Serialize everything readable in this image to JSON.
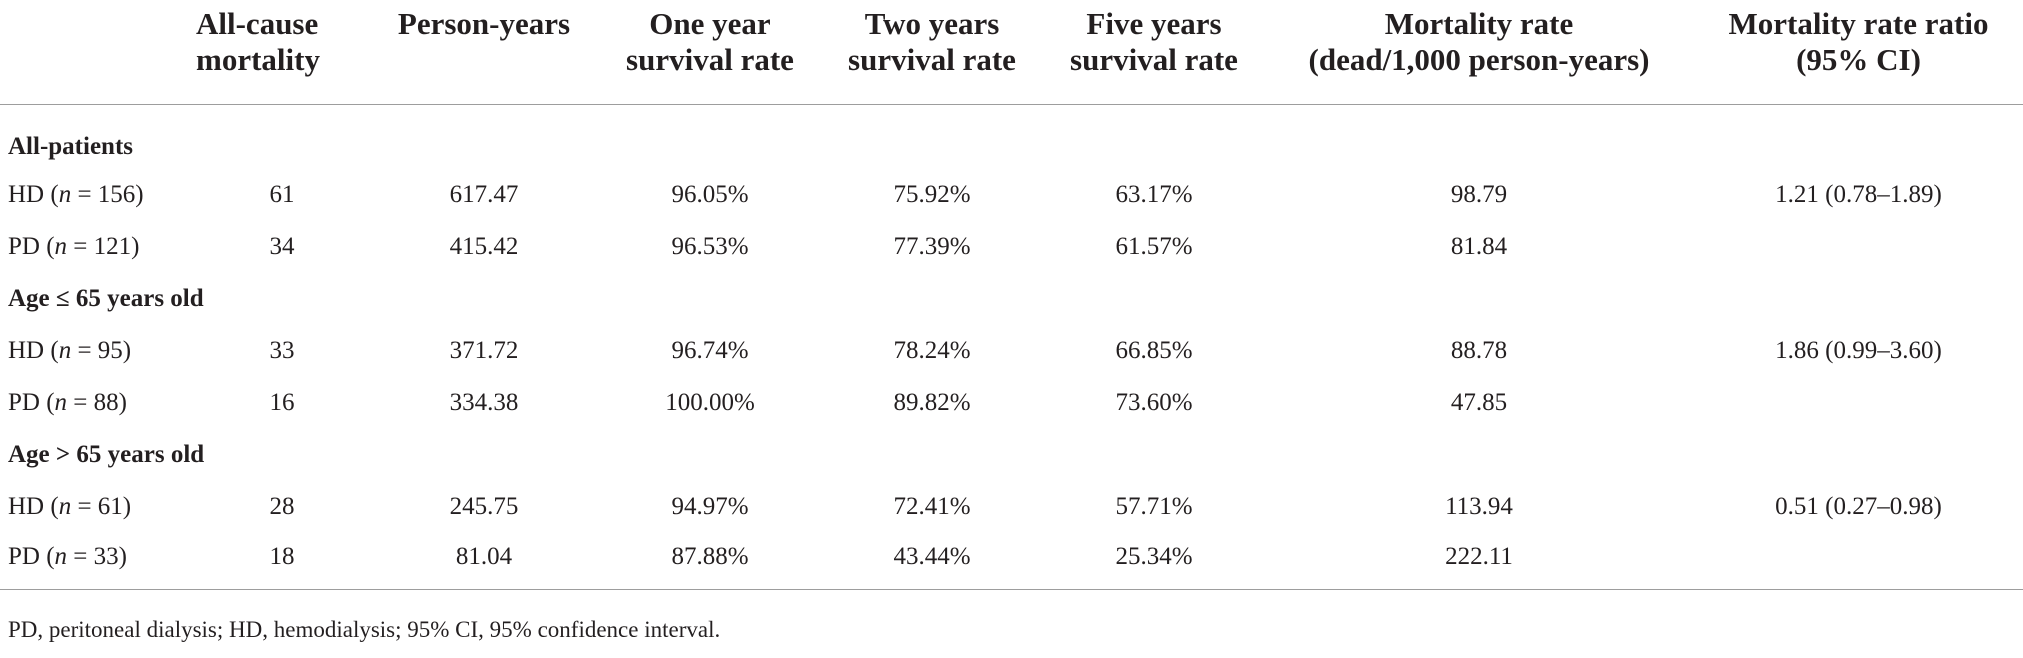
{
  "headers": [
    "",
    "All-cause mortality",
    "Person-years",
    "One year survival rate",
    "Two years survival rate",
    "Five years survival rate",
    "Mortality rate (dead/1,000 person-years)",
    "Mortality rate ratio (95% CI)"
  ],
  "header_lines": [
    [
      "",
      ""
    ],
    [
      "All-cause",
      "mortality"
    ],
    [
      "Person-years",
      ""
    ],
    [
      "One year",
      "survival rate"
    ],
    [
      "Two years",
      "survival rate"
    ],
    [
      "Five years",
      "survival rate"
    ],
    [
      "Mortality rate",
      "(dead/1,000 person-years)"
    ],
    [
      "Mortality rate ratio",
      "(95% CI)"
    ]
  ],
  "groups": [
    {
      "title": "All-patients",
      "rows": [
        {
          "group": "HD",
          "n": "156",
          "mortality": "61",
          "person_years": "617.47",
          "one_year": "96.05%",
          "two_years": "75.92%",
          "five_years": "63.17%",
          "rate": "98.79",
          "ratio": "1.21 (0.78–1.89)"
        },
        {
          "group": "PD",
          "n": "121",
          "mortality": "34",
          "person_years": "415.42",
          "one_year": "96.53%",
          "two_years": "77.39%",
          "five_years": "61.57%",
          "rate": "81.84",
          "ratio": ""
        }
      ]
    },
    {
      "title": "Age ≤ 65 years old",
      "rows": [
        {
          "group": "HD",
          "n": "95",
          "mortality": "33",
          "person_years": "371.72",
          "one_year": "96.74%",
          "two_years": "78.24%",
          "five_years": "66.85%",
          "rate": "88.78",
          "ratio": "1.86 (0.99–3.60)"
        },
        {
          "group": "PD",
          "n": "88",
          "mortality": "16",
          "person_years": "334.38",
          "one_year": "100.00%",
          "two_years": "89.82%",
          "five_years": "73.60%",
          "rate": "47.85",
          "ratio": ""
        }
      ]
    },
    {
      "title": "Age > 65 years old",
      "rows": [
        {
          "group": "HD",
          "n": "61",
          "mortality": "28",
          "person_years": "245.75",
          "one_year": "94.97%",
          "two_years": "72.41%",
          "five_years": "57.71%",
          "rate": "113.94",
          "ratio": "0.51 (0.27–0.98)"
        },
        {
          "group": "PD",
          "n": "33",
          "mortality": "18",
          "person_years": "81.04",
          "one_year": "87.88%",
          "two_years": "43.44%",
          "five_years": "25.34%",
          "rate": "222.11",
          "ratio": ""
        }
      ]
    }
  ],
  "footnote": "PD, peritoneal dialysis; HD, hemodialysis; 95% CI, 95% confidence interval."
}
